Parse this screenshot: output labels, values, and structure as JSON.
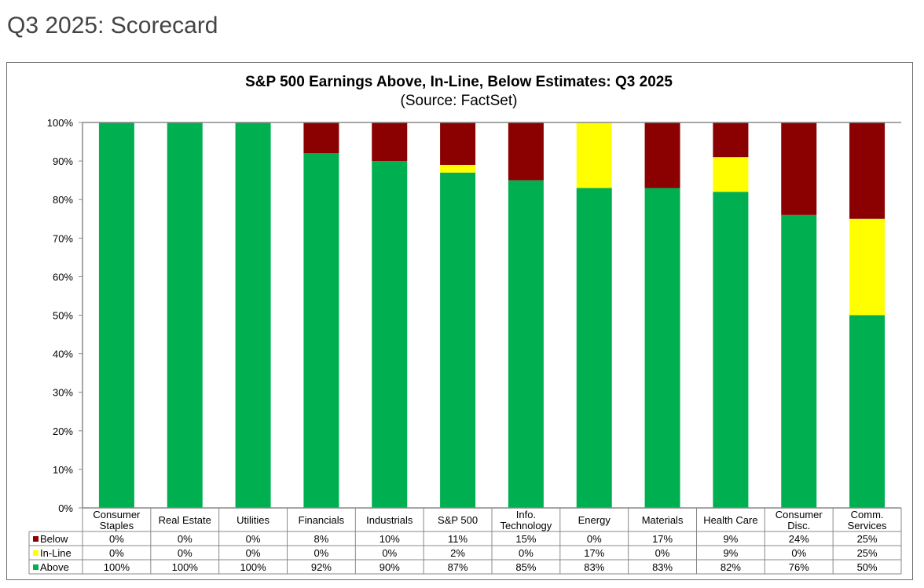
{
  "page": {
    "title": "Q3 2025: Scorecard"
  },
  "chart_data": {
    "type": "bar",
    "stacked": true,
    "title": "S&P 500 Earnings Above, In-Line, Below Estimates: Q3 2025",
    "subtitle": "(Source: FactSet)",
    "xlabel": "",
    "ylabel": "",
    "ylim": [
      0,
      100
    ],
    "yticks": [
      "0%",
      "10%",
      "20%",
      "30%",
      "40%",
      "50%",
      "60%",
      "70%",
      "80%",
      "90%",
      "100%"
    ],
    "grid": false,
    "legend": "data-table",
    "categories": [
      [
        "Consumer",
        "Staples"
      ],
      [
        "Real Estate"
      ],
      [
        "Utilities"
      ],
      [
        "Financials"
      ],
      [
        "Industrials"
      ],
      [
        "S&P 500"
      ],
      [
        "Info.",
        "Technology"
      ],
      [
        "Energy"
      ],
      [
        "Materials"
      ],
      [
        "Health Care"
      ],
      [
        "Consumer",
        "Disc."
      ],
      [
        "Comm.",
        "Services"
      ]
    ],
    "series": [
      {
        "name": "Below",
        "color": "#8B0000",
        "values": [
          0,
          0,
          0,
          8,
          10,
          11,
          15,
          0,
          17,
          9,
          24,
          25
        ]
      },
      {
        "name": "In-Line",
        "color": "#FFFF00",
        "values": [
          0,
          0,
          0,
          0,
          0,
          2,
          0,
          17,
          0,
          9,
          0,
          25
        ]
      },
      {
        "name": "Above",
        "color": "#00B050",
        "values": [
          100,
          100,
          100,
          92,
          90,
          87,
          85,
          83,
          83,
          82,
          76,
          50
        ]
      }
    ]
  }
}
